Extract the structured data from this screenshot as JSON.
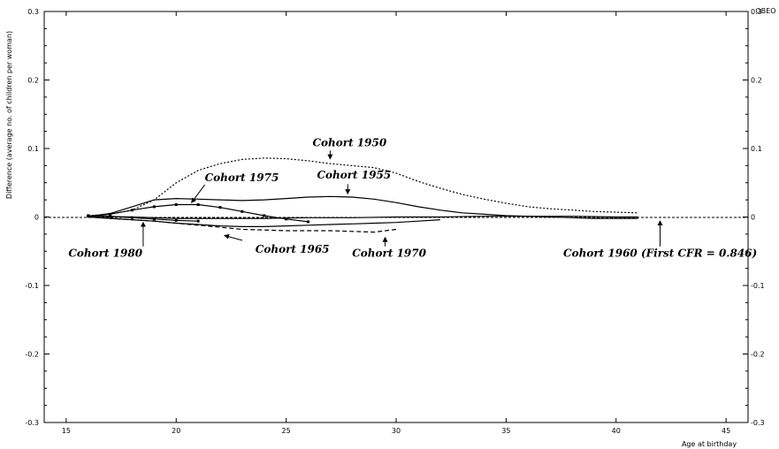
{
  "chart_data": {
    "type": "line",
    "ylabel": "Difference (average no. of children per woman)",
    "xlabel": "Age at birthday",
    "corner_label": "OBEO",
    "xlim": [
      14,
      46
    ],
    "ylim": [
      -0.3,
      0.3
    ],
    "x_ticks": [
      15,
      20,
      25,
      30,
      35,
      40,
      45
    ],
    "y_ticks": [
      -0.3,
      -0.2,
      -0.1,
      0,
      0.1,
      0.2,
      0.3
    ],
    "y_tick_labels": [
      "-0.3",
      "-0.2",
      "-0.1",
      "0",
      "0.1",
      "0.2",
      "0.3"
    ],
    "series": [
      {
        "name": "Cohort 1950",
        "style": "dotted",
        "x": [
          16,
          17,
          18,
          19,
          20,
          21,
          22,
          23,
          24,
          25,
          26,
          27,
          28,
          29,
          30,
          31,
          32,
          33,
          34,
          35,
          36,
          37,
          38,
          39,
          40,
          41
        ],
        "values": [
          0.002,
          0.004,
          0.01,
          0.025,
          0.05,
          0.068,
          0.078,
          0.084,
          0.086,
          0.085,
          0.082,
          0.078,
          0.075,
          0.072,
          0.064,
          0.052,
          0.042,
          0.033,
          0.026,
          0.02,
          0.015,
          0.012,
          0.01,
          0.008,
          0.007,
          0.006
        ]
      },
      {
        "name": "Cohort 1955",
        "style": "solid",
        "x": [
          16,
          17,
          18,
          19,
          20,
          21,
          22,
          23,
          24,
          25,
          26,
          27,
          28,
          29,
          30,
          31,
          32,
          33,
          34,
          35,
          36,
          37,
          38,
          39,
          40,
          41
        ],
        "values": [
          0.001,
          0.005,
          0.015,
          0.025,
          0.027,
          0.026,
          0.025,
          0.024,
          0.025,
          0.027,
          0.029,
          0.03,
          0.029,
          0.026,
          0.021,
          0.015,
          0.01,
          0.006,
          0.004,
          0.002,
          0.001,
          0.0,
          -0.001,
          -0.002,
          -0.002,
          -0.002
        ]
      },
      {
        "name": "Cohort 1960 (First CFR = 0.846)",
        "style": "solid",
        "x": [
          16,
          18,
          20,
          22,
          24,
          26,
          28,
          30,
          32,
          34,
          36,
          38,
          40,
          41
        ],
        "values": [
          0.001,
          0.0,
          -0.002,
          -0.002,
          -0.002,
          -0.001,
          -0.001,
          0.0,
          0.0,
          0.001,
          0.001,
          0.001,
          0.0,
          0.0
        ]
      },
      {
        "name": "Cohort 1965",
        "style": "solid",
        "x": [
          16,
          17,
          18,
          19,
          20,
          21,
          22,
          23,
          24,
          25,
          26,
          27,
          28,
          29,
          30,
          31,
          32
        ],
        "values": [
          0.0,
          -0.002,
          -0.004,
          -0.006,
          -0.009,
          -0.011,
          -0.013,
          -0.014,
          -0.014,
          -0.013,
          -0.012,
          -0.011,
          -0.01,
          -0.009,
          -0.008,
          -0.006,
          -0.004
        ]
      },
      {
        "name": "Cohort 1970",
        "style": "dashed",
        "x": [
          16,
          17,
          18,
          19,
          20,
          21,
          22,
          23,
          24,
          25,
          26,
          27,
          28,
          29,
          30
        ],
        "values": [
          0.0,
          -0.002,
          -0.004,
          -0.006,
          -0.009,
          -0.012,
          -0.015,
          -0.018,
          -0.019,
          -0.02,
          -0.02,
          -0.02,
          -0.021,
          -0.022,
          -0.018
        ]
      },
      {
        "name": "Cohort 1975",
        "style": "solid-marked",
        "x": [
          16,
          17,
          18,
          19,
          20,
          21,
          22,
          23,
          24,
          25,
          26
        ],
        "values": [
          0.001,
          0.004,
          0.01,
          0.015,
          0.018,
          0.018,
          0.014,
          0.008,
          0.002,
          -0.003,
          -0.007
        ]
      },
      {
        "name": "Cohort 1980",
        "style": "solid-marked",
        "x": [
          16,
          17,
          18,
          19,
          20,
          21
        ],
        "values": [
          0.002,
          0.001,
          -0.001,
          -0.003,
          -0.005,
          -0.006
        ]
      }
    ],
    "annotations": [
      {
        "text": "Cohort 1950",
        "x": 26.2,
        "y": 0.103,
        "ax": 27.0,
        "ay": 0.097,
        "bx": 27.0,
        "by": 0.085
      },
      {
        "text": "Cohort 1955",
        "x": 26.4,
        "y": 0.056,
        "ax": 27.8,
        "ay": 0.048,
        "bx": 27.8,
        "by": 0.034
      },
      {
        "text": "Cohort 1975",
        "x": 21.3,
        "y": 0.052,
        "ax": 21.3,
        "ay": 0.047,
        "bx": 20.7,
        "by": 0.021
      },
      {
        "text": "Cohort 1980",
        "x": 15.1,
        "y": -0.058,
        "ax": 18.5,
        "ay": -0.043,
        "bx": 18.5,
        "by": -0.008
      },
      {
        "text": "Cohort 1965",
        "x": 23.6,
        "y": -0.052,
        "ax": 23.0,
        "ay": -0.034,
        "bx": 22.2,
        "by": -0.027
      },
      {
        "text": "Cohort 1970",
        "x": 28.0,
        "y": -0.058,
        "ax": 29.5,
        "ay": -0.043,
        "bx": 29.5,
        "by": -0.03
      },
      {
        "text": "Cohort 1960 (First CFR = 0.846)",
        "x": 37.6,
        "y": -0.058,
        "ax": 42.0,
        "ay": -0.043,
        "bx": 42.0,
        "by": -0.006
      }
    ]
  }
}
